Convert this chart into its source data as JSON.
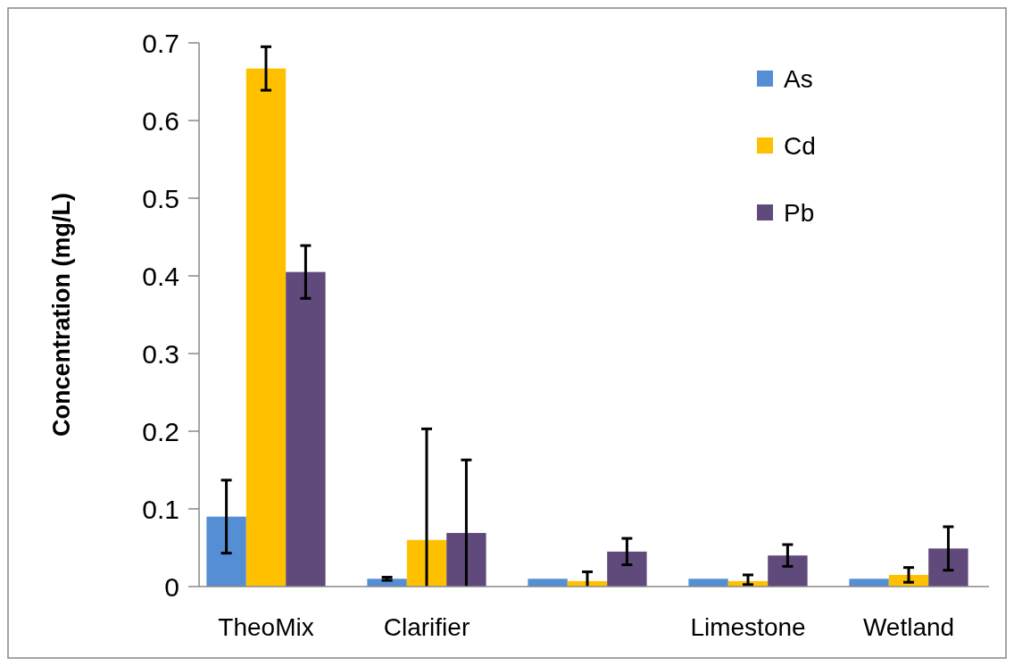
{
  "chart_data": {
    "type": "bar",
    "ylabel": "Concentration (mg/L)",
    "categories": [
      "TheoMix",
      "Clarifier",
      null,
      "Limestone",
      "Wetland"
    ],
    "series": [
      {
        "name": "As",
        "color": "#558ed5",
        "values": [
          0.09,
          0.01,
          0.01,
          0.01,
          0.01
        ],
        "errors": [
          0.047,
          0.002,
          null,
          null,
          null
        ]
      },
      {
        "name": "Cd",
        "color": "#ffc000",
        "values": [
          0.667,
          0.06,
          0.007,
          0.007,
          0.015
        ],
        "errors": [
          0.028,
          [
            0,
            0.203
          ],
          [
            0,
            0.019
          ],
          [
            0.0025,
            0.015
          ],
          0.0095
        ]
      },
      {
        "name": "Pb",
        "color": "#604a7b",
        "values": [
          0.405,
          0.069,
          0.045,
          0.04,
          0.049
        ],
        "errors": [
          0.034,
          [
            0,
            0.163
          ],
          0.017,
          0.014,
          0.028
        ]
      }
    ],
    "ylim": [
      0,
      0.7
    ],
    "yticks": [
      {
        "value": 0,
        "label": "0"
      },
      0.1,
      0.2,
      0.3,
      0.4,
      0.5,
      0.6,
      0.7
    ],
    "legend": "top right",
    "grid": false
  }
}
